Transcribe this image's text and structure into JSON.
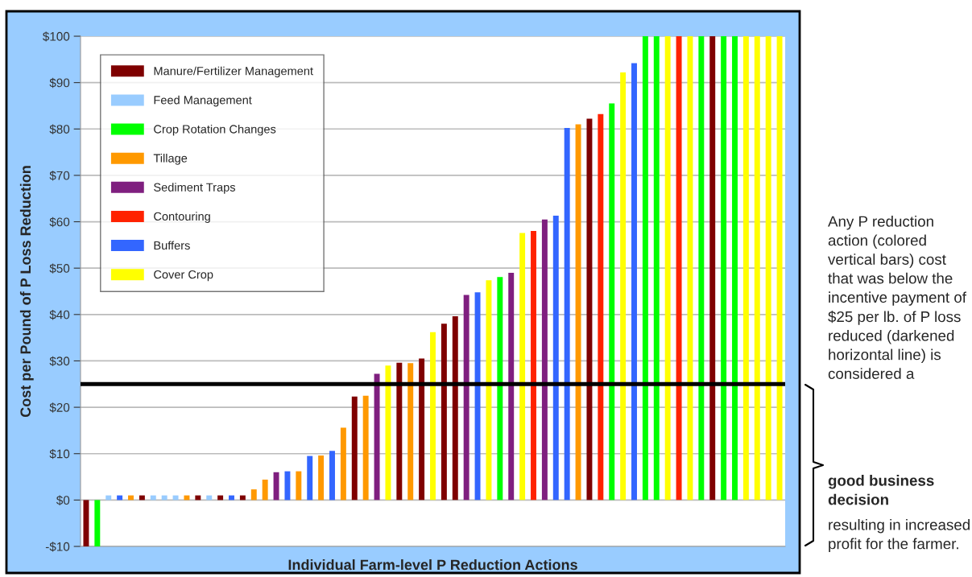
{
  "chart_data": {
    "type": "bar",
    "xlabel": "Individual Farm-level P Reduction Actions",
    "ylabel": "Cost per Pound of P Loss Reduction",
    "categories": [
      null,
      null,
      null,
      null,
      null,
      null,
      null,
      null,
      null,
      null,
      null,
      null,
      null,
      null,
      null,
      null,
      null,
      null,
      null,
      null,
      null,
      null,
      null,
      null,
      null,
      null,
      null,
      null,
      null,
      null,
      null,
      null,
      null,
      null,
      null,
      null,
      null,
      null,
      null,
      null,
      null,
      null,
      null,
      null,
      null,
      null,
      null,
      null,
      null,
      null,
      null,
      null,
      null,
      null,
      null,
      null,
      null,
      null,
      null,
      null,
      null,
      null,
      null
    ],
    "series": [
      {
        "name": "Manure/Fertilizer Management",
        "color": "#7f0000",
        "values": [
          -10,
          null,
          null,
          null,
          null,
          1,
          null,
          null,
          null,
          null,
          1,
          null,
          1,
          null,
          1,
          null,
          null,
          null,
          null,
          null,
          null,
          null,
          null,
          null,
          22.3,
          null,
          null,
          null,
          29.6,
          null,
          30.5,
          null,
          38,
          39.6,
          null,
          null,
          null,
          null,
          null,
          null,
          null,
          null,
          null,
          null,
          null,
          82.2,
          null,
          null,
          null,
          null,
          null,
          null,
          null,
          null,
          null,
          null,
          100,
          null,
          null,
          null,
          null,
          null,
          null
        ]
      },
      {
        "name": "Feed Management",
        "color": "#99ccff",
        "values": [
          null,
          null,
          1,
          null,
          null,
          null,
          1,
          1,
          1,
          null,
          null,
          1,
          null,
          null,
          null,
          null,
          null,
          null,
          null,
          null,
          null,
          null,
          null,
          null,
          null,
          null,
          null,
          null,
          null,
          null,
          null,
          null,
          null,
          null,
          null,
          null,
          null,
          null,
          null,
          null,
          null,
          null,
          null,
          null,
          null,
          null,
          null,
          null,
          null,
          null,
          null,
          null,
          null,
          null,
          null,
          null,
          null,
          null,
          null,
          null,
          null,
          null,
          null
        ]
      },
      {
        "name": "Crop Rotation Changes",
        "color": "#00ff00",
        "values": [
          null,
          -10,
          null,
          null,
          null,
          null,
          null,
          null,
          null,
          null,
          null,
          null,
          null,
          null,
          null,
          null,
          null,
          null,
          null,
          null,
          null,
          null,
          null,
          null,
          null,
          null,
          null,
          null,
          null,
          null,
          null,
          null,
          null,
          null,
          null,
          null,
          null,
          48.1,
          null,
          null,
          null,
          null,
          null,
          null,
          null,
          null,
          null,
          85.5,
          null,
          null,
          100,
          100,
          null,
          null,
          null,
          100,
          null,
          100,
          100,
          null,
          null,
          null,
          null
        ]
      },
      {
        "name": "Tillage",
        "color": "#ff9900",
        "values": [
          null,
          null,
          null,
          null,
          1,
          null,
          null,
          null,
          null,
          1,
          null,
          null,
          null,
          null,
          null,
          2.3,
          4.4,
          null,
          null,
          6.2,
          null,
          9.6,
          null,
          15.6,
          null,
          22.5,
          null,
          null,
          null,
          29.5,
          null,
          null,
          null,
          null,
          null,
          null,
          null,
          null,
          null,
          null,
          null,
          null,
          null,
          null,
          81,
          null,
          null,
          null,
          null,
          null,
          null,
          null,
          null,
          null,
          null,
          null,
          null,
          null,
          null,
          null,
          null,
          null,
          null
        ]
      },
      {
        "name": "Sediment Traps",
        "color": "#7f1f7f",
        "values": [
          null,
          null,
          null,
          null,
          null,
          null,
          null,
          null,
          null,
          null,
          null,
          null,
          null,
          null,
          null,
          null,
          null,
          6,
          null,
          null,
          null,
          null,
          null,
          null,
          null,
          null,
          27.2,
          null,
          null,
          null,
          null,
          null,
          null,
          null,
          44.2,
          null,
          null,
          null,
          49,
          null,
          null,
          60.5,
          null,
          null,
          null,
          null,
          null,
          null,
          null,
          null,
          null,
          null,
          null,
          null,
          null,
          null,
          null,
          null,
          null,
          null,
          null,
          null,
          null
        ]
      },
      {
        "name": "Contouring",
        "color": "#ff2200",
        "values": [
          null,
          null,
          null,
          null,
          null,
          null,
          null,
          null,
          null,
          null,
          null,
          null,
          null,
          null,
          null,
          null,
          null,
          null,
          null,
          null,
          null,
          null,
          null,
          null,
          null,
          null,
          null,
          null,
          null,
          null,
          null,
          null,
          null,
          null,
          null,
          null,
          null,
          null,
          null,
          null,
          58,
          null,
          null,
          null,
          null,
          null,
          83.2,
          null,
          null,
          null,
          null,
          null,
          null,
          100,
          null,
          null,
          null,
          null,
          null,
          null,
          null,
          null,
          null
        ]
      },
      {
        "name": "Buffers",
        "color": "#3366ff",
        "values": [
          null,
          null,
          null,
          1,
          null,
          null,
          null,
          null,
          null,
          null,
          null,
          null,
          null,
          1,
          null,
          null,
          null,
          null,
          6.2,
          null,
          9.5,
          null,
          10.6,
          null,
          null,
          null,
          null,
          null,
          null,
          null,
          null,
          null,
          null,
          null,
          null,
          44.8,
          null,
          null,
          null,
          null,
          null,
          null,
          61.3,
          80.2,
          null,
          null,
          null,
          null,
          null,
          94.2,
          null,
          null,
          null,
          null,
          null,
          null,
          null,
          null,
          null,
          null,
          null,
          null,
          null
        ]
      },
      {
        "name": "Cover Crop",
        "color": "#ffff00",
        "values": [
          null,
          null,
          null,
          null,
          null,
          null,
          null,
          null,
          null,
          null,
          null,
          null,
          null,
          null,
          null,
          null,
          null,
          null,
          null,
          null,
          null,
          null,
          null,
          null,
          null,
          null,
          null,
          29,
          null,
          null,
          null,
          36.2,
          null,
          null,
          null,
          null,
          47.4,
          null,
          null,
          57.6,
          null,
          null,
          null,
          null,
          null,
          null,
          null,
          null,
          92.2,
          null,
          null,
          null,
          100,
          null,
          100,
          null,
          null,
          null,
          null,
          100,
          100,
          100,
          100
        ]
      }
    ],
    "ylim": [
      -10,
      100
    ],
    "yticks": [
      {
        "value": -10,
        "label": "-$10"
      },
      {
        "value": 0,
        "label": "$0"
      },
      {
        "value": 10,
        "label": "$10"
      },
      {
        "value": 20,
        "label": "$20"
      },
      {
        "value": 30,
        "label": "$30"
      },
      {
        "value": 40,
        "label": "$40"
      },
      {
        "value": 50,
        "label": "$50"
      },
      {
        "value": 60,
        "label": "$60"
      },
      {
        "value": 70,
        "label": "$70"
      },
      {
        "value": 80,
        "label": "$80"
      },
      {
        "value": 90,
        "label": "$90"
      },
      {
        "value": 100,
        "label": "$100"
      }
    ],
    "ref_lines": [
      {
        "axis": "y",
        "value": 25,
        "color": "#000000"
      }
    ],
    "grid": "y",
    "legend": "top left",
    "annotations": [
      "Any P reduction action (colored vertical bars) cost that was below the incentive payment of $25 per lb. of P loss reduced (darkened horizontal line) is considered a",
      "good business decision",
      "resulting in increased profit for the farmer."
    ]
  }
}
